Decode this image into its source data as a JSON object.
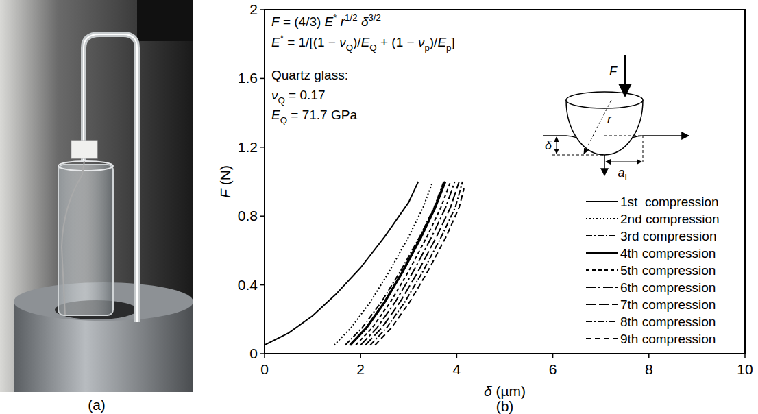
{
  "chart_data": {
    "type": "line",
    "xlabel": [
      {
        "text": "δ",
        "style": "italic"
      },
      {
        "text": " (µm)",
        "style": "normal"
      }
    ],
    "ylabel": [
      {
        "text": "F",
        "style": "italic"
      },
      {
        "text": " (N)",
        "style": "normal"
      }
    ],
    "xlim": [
      0,
      10
    ],
    "ylim": [
      0,
      2
    ],
    "xticks": [
      0,
      2,
      4,
      6,
      8,
      10
    ],
    "yticks": [
      0,
      0.4,
      0.8,
      1.2,
      1.6,
      2
    ],
    "grid": false,
    "legend": "bottom-right",
    "series": [
      {
        "name": "1st  compression",
        "color": "#000000",
        "line_style": "solid",
        "x": [
          0,
          0.5,
          1.0,
          1.5,
          2.0,
          2.5,
          3.0,
          3.2
        ],
        "values": [
          0.05,
          0.12,
          0.22,
          0.35,
          0.5,
          0.68,
          0.88,
          1.0
        ]
      },
      {
        "name": "2nd compression",
        "color": "#000000",
        "line_style": "dotted",
        "x": [
          1.45,
          1.8,
          2.2,
          2.6,
          3.0,
          3.3,
          3.5
        ],
        "values": [
          0.05,
          0.15,
          0.3,
          0.48,
          0.68,
          0.85,
          1.0
        ]
      },
      {
        "name": "3rd compression",
        "color": "#000000",
        "line_style": "dash-dot",
        "x": [
          1.68,
          2.03,
          2.43,
          2.83,
          3.23,
          3.53,
          3.73
        ],
        "values": [
          0.05,
          0.15,
          0.3,
          0.48,
          0.68,
          0.85,
          1.0
        ]
      },
      {
        "name": "4th compression",
        "color": "#000000",
        "line_style": "bold",
        "x": [
          1.78,
          2.12,
          2.5,
          2.88,
          3.26,
          3.55,
          3.76
        ],
        "values": [
          0.05,
          0.15,
          0.3,
          0.48,
          0.68,
          0.85,
          1.0
        ]
      },
      {
        "name": "5th compression",
        "color": "#000000",
        "line_style": "short-dash",
        "x": [
          1.9,
          2.24,
          2.62,
          3.0,
          3.38,
          3.67,
          3.87
        ],
        "values": [
          0.05,
          0.15,
          0.3,
          0.48,
          0.68,
          0.85,
          1.0
        ]
      },
      {
        "name": "6th compression",
        "color": "#000000",
        "line_style": "long-dash-dot",
        "x": [
          2.0,
          2.34,
          2.72,
          3.1,
          3.48,
          3.77,
          3.96
        ],
        "values": [
          0.05,
          0.15,
          0.3,
          0.48,
          0.68,
          0.85,
          1.0
        ]
      },
      {
        "name": "7th compression",
        "color": "#000000",
        "line_style": "long-dash",
        "x": [
          2.1,
          2.44,
          2.82,
          3.2,
          3.58,
          3.87,
          4.05
        ],
        "values": [
          0.05,
          0.15,
          0.3,
          0.48,
          0.68,
          0.85,
          1.0
        ]
      },
      {
        "name": "8th compression",
        "color": "#000000",
        "line_style": "dash-dot",
        "x": [
          2.2,
          2.54,
          2.92,
          3.3,
          3.68,
          3.97,
          4.12
        ],
        "values": [
          0.05,
          0.15,
          0.3,
          0.48,
          0.68,
          0.85,
          1.0
        ]
      },
      {
        "name": "9th compression",
        "color": "#000000",
        "line_style": "dashed",
        "x": [
          2.3,
          2.64,
          3.02,
          3.4,
          3.78,
          4.05,
          4.15
        ],
        "values": [
          0.05,
          0.15,
          0.3,
          0.48,
          0.68,
          0.85,
          0.96
        ]
      }
    ],
    "annotations": [
      [
        {
          "text": "F",
          "style": "italic"
        },
        {
          "text": " = (4/3) ",
          "style": "normal"
        },
        {
          "text": "E",
          "style": "italic"
        },
        {
          "text": "*",
          "style": "sup"
        },
        {
          "text": " ",
          "style": "normal"
        },
        {
          "text": "r",
          "style": "italic"
        },
        {
          "text": "1/2",
          "style": "sup"
        },
        {
          "text": " ",
          "style": "normal"
        },
        {
          "text": "δ",
          "style": "italic"
        },
        {
          "text": "3/2",
          "style": "sup"
        }
      ],
      [
        {
          "text": "E",
          "style": "italic"
        },
        {
          "text": "*",
          "style": "sup"
        },
        {
          "text": " = 1/[(1 − ",
          "style": "normal"
        },
        {
          "text": "ν",
          "style": "italic"
        },
        {
          "text": "Q",
          "style": "sub"
        },
        {
          "text": ")/",
          "style": "normal"
        },
        {
          "text": "E",
          "style": "italic"
        },
        {
          "text": "Q",
          "style": "sub"
        },
        {
          "text": " + (1 − ",
          "style": "normal"
        },
        {
          "text": "ν",
          "style": "italic"
        },
        {
          "text": "p",
          "style": "sub"
        },
        {
          "text": ")/",
          "style": "normal"
        },
        {
          "text": "E",
          "style": "italic"
        },
        {
          "text": "p",
          "style": "sub"
        },
        {
          "text": "]",
          "style": "normal"
        }
      ],
      [
        {
          "text": "Quartz glass:",
          "style": "normal"
        }
      ],
      [
        {
          "text": "ν",
          "style": "italic"
        },
        {
          "text": "Q",
          "style": "sub"
        },
        {
          "text": " = 0.17",
          "style": "normal"
        }
      ],
      [
        {
          "text": "E",
          "style": "italic"
        },
        {
          "text": "Q",
          "style": "sub"
        },
        {
          "text": " = 71.7 GPa",
          "style": "normal"
        }
      ]
    ],
    "inset_labels": {
      "force": [
        {
          "text": "F",
          "style": "italic"
        }
      ],
      "radius": [
        {
          "text": "r",
          "style": "italic"
        }
      ],
      "depth": [
        {
          "text": "δ",
          "style": "italic"
        }
      ],
      "contact": [
        {
          "text": "a",
          "style": "italic"
        },
        {
          "text": "L",
          "style": "sub"
        }
      ]
    }
  },
  "figure": {
    "panel_labels": [
      "(a)",
      "(b)"
    ]
  }
}
